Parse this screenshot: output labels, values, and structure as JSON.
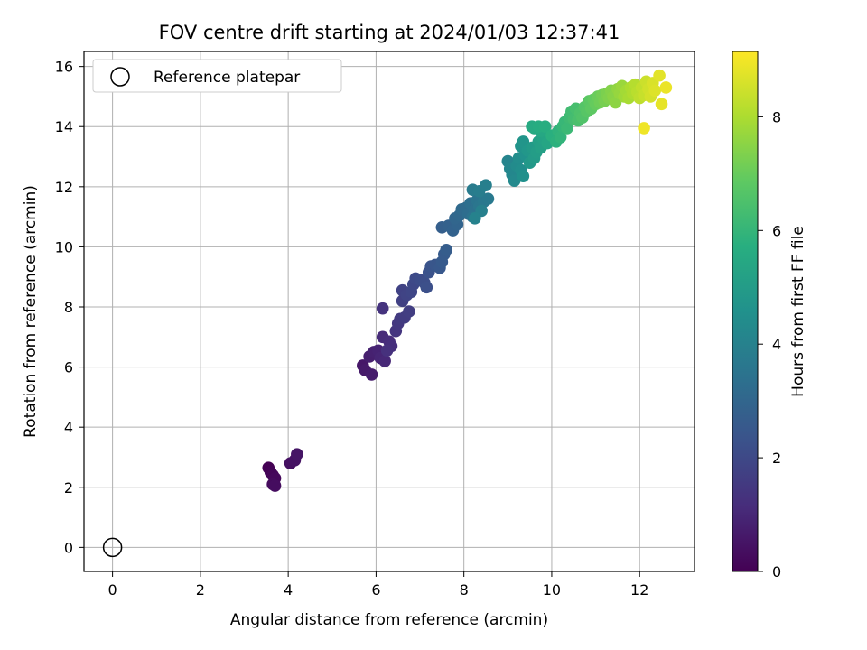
{
  "chart_data": {
    "type": "scatter",
    "title": "FOV centre drift starting at 2024/01/03 12:37:41",
    "xlabel": "Angular distance from reference (arcmin)",
    "ylabel": "Rotation from reference (arcmin)",
    "xlim": [
      -0.65,
      13.25
    ],
    "ylim": [
      -0.8,
      16.5
    ],
    "xticks": [
      0,
      2,
      4,
      6,
      8,
      10,
      12
    ],
    "yticks": [
      0,
      2,
      4,
      6,
      8,
      10,
      12,
      14,
      16
    ],
    "grid": true,
    "legend": {
      "placement": "top-left",
      "entries": [
        "Reference platepar"
      ]
    },
    "reference_point": {
      "name": "Reference platepar",
      "x": 0,
      "y": 0,
      "marker": "open-circle"
    },
    "colorbar": {
      "label": "Hours from first FF file",
      "colormap": "viridis",
      "range": [
        0,
        9.15
      ],
      "ticks": [
        0,
        2,
        4,
        6,
        8
      ]
    },
    "series": [
      {
        "name": "",
        "points": [
          [
            3.55,
            2.65
          ],
          [
            3.6,
            2.5
          ],
          [
            3.65,
            2.4
          ],
          [
            3.7,
            2.3
          ],
          [
            3.65,
            2.1
          ],
          [
            3.7,
            2.05
          ],
          [
            4.05,
            2.8
          ],
          [
            4.15,
            2.9
          ],
          [
            4.2,
            3.1
          ],
          [
            5.7,
            6.05
          ],
          [
            5.75,
            5.9
          ],
          [
            5.9,
            5.75
          ],
          [
            5.85,
            6.35
          ],
          [
            5.95,
            6.5
          ],
          [
            6.05,
            6.55
          ],
          [
            6.1,
            6.3
          ],
          [
            6.2,
            6.2
          ],
          [
            6.15,
            7.0
          ],
          [
            6.3,
            6.85
          ],
          [
            6.35,
            6.7
          ],
          [
            6.25,
            6.55
          ],
          [
            6.15,
            7.95
          ],
          [
            6.45,
            7.2
          ],
          [
            6.5,
            7.45
          ],
          [
            6.55,
            7.6
          ],
          [
            6.65,
            7.65
          ],
          [
            6.75,
            7.85
          ],
          [
            6.6,
            8.2
          ],
          [
            6.6,
            8.55
          ],
          [
            6.7,
            8.4
          ],
          [
            6.8,
            8.5
          ],
          [
            6.85,
            8.75
          ],
          [
            6.9,
            8.95
          ],
          [
            7.0,
            8.9
          ],
          [
            7.1,
            8.8
          ],
          [
            7.15,
            8.65
          ],
          [
            7.2,
            9.15
          ],
          [
            7.25,
            9.35
          ],
          [
            7.35,
            9.4
          ],
          [
            7.45,
            9.3
          ],
          [
            7.5,
            9.5
          ],
          [
            7.55,
            9.75
          ],
          [
            7.6,
            9.9
          ],
          [
            7.5,
            10.65
          ],
          [
            7.65,
            10.7
          ],
          [
            7.75,
            10.55
          ],
          [
            7.85,
            10.75
          ],
          [
            7.8,
            10.95
          ],
          [
            7.9,
            11.05
          ],
          [
            7.95,
            11.25
          ],
          [
            8.05,
            11.3
          ],
          [
            8.1,
            11.1
          ],
          [
            8.15,
            11.45
          ],
          [
            8.25,
            11.25
          ],
          [
            8.2,
            11.0
          ],
          [
            8.3,
            11.55
          ],
          [
            8.35,
            11.35
          ],
          [
            8.45,
            11.5
          ],
          [
            8.55,
            11.6
          ],
          [
            8.2,
            11.9
          ],
          [
            8.35,
            11.85
          ],
          [
            8.5,
            12.05
          ],
          [
            8.4,
            11.2
          ],
          [
            8.25,
            10.95
          ],
          [
            9.0,
            12.85
          ],
          [
            9.05,
            12.6
          ],
          [
            9.1,
            12.4
          ],
          [
            9.15,
            12.2
          ],
          [
            9.2,
            12.7
          ],
          [
            9.25,
            12.95
          ],
          [
            9.3,
            12.55
          ],
          [
            9.35,
            12.35
          ],
          [
            9.4,
            13.05
          ],
          [
            9.3,
            13.35
          ],
          [
            9.35,
            13.5
          ],
          [
            9.45,
            13.2
          ],
          [
            9.5,
            12.8
          ],
          [
            9.55,
            13.3
          ],
          [
            9.6,
            12.95
          ],
          [
            9.65,
            13.15
          ],
          [
            9.7,
            13.5
          ],
          [
            9.75,
            13.3
          ],
          [
            9.8,
            13.6
          ],
          [
            9.85,
            13.75
          ],
          [
            9.9,
            13.45
          ],
          [
            9.75,
            13.85
          ],
          [
            9.6,
            13.95
          ],
          [
            9.55,
            14.0
          ],
          [
            9.7,
            14.0
          ],
          [
            9.85,
            14.0
          ],
          [
            10.0,
            13.7
          ],
          [
            10.1,
            13.5
          ],
          [
            10.15,
            13.85
          ],
          [
            10.2,
            13.65
          ],
          [
            10.25,
            14.0
          ],
          [
            10.3,
            14.15
          ],
          [
            10.35,
            13.95
          ],
          [
            10.4,
            14.3
          ],
          [
            10.45,
            14.5
          ],
          [
            10.5,
            14.25
          ],
          [
            10.55,
            14.6
          ],
          [
            10.6,
            14.2
          ],
          [
            10.65,
            14.45
          ],
          [
            10.7,
            14.3
          ],
          [
            10.75,
            14.65
          ],
          [
            10.8,
            14.5
          ],
          [
            10.85,
            14.85
          ],
          [
            10.9,
            14.6
          ],
          [
            10.95,
            14.9
          ],
          [
            11.0,
            14.75
          ],
          [
            11.05,
            15.0
          ],
          [
            11.1,
            14.8
          ],
          [
            11.15,
            15.05
          ],
          [
            11.2,
            14.85
          ],
          [
            11.25,
            15.1
          ],
          [
            11.3,
            14.95
          ],
          [
            11.35,
            15.2
          ],
          [
            11.4,
            15.0
          ],
          [
            11.45,
            14.8
          ],
          [
            11.5,
            15.25
          ],
          [
            11.55,
            15.1
          ],
          [
            11.6,
            15.35
          ],
          [
            11.65,
            15.0
          ],
          [
            11.7,
            15.2
          ],
          [
            11.75,
            14.95
          ],
          [
            11.8,
            15.3
          ],
          [
            11.85,
            15.1
          ],
          [
            11.9,
            15.4
          ],
          [
            11.95,
            15.15
          ],
          [
            12.0,
            14.95
          ],
          [
            12.05,
            15.3
          ],
          [
            12.1,
            15.05
          ],
          [
            12.15,
            15.5
          ],
          [
            12.2,
            15.25
          ],
          [
            12.25,
            15.0
          ],
          [
            12.3,
            15.45
          ],
          [
            12.35,
            15.2
          ],
          [
            12.45,
            15.7
          ],
          [
            12.5,
            14.75
          ],
          [
            12.6,
            15.3
          ],
          [
            12.1,
            13.95
          ]
        ]
      }
    ]
  }
}
